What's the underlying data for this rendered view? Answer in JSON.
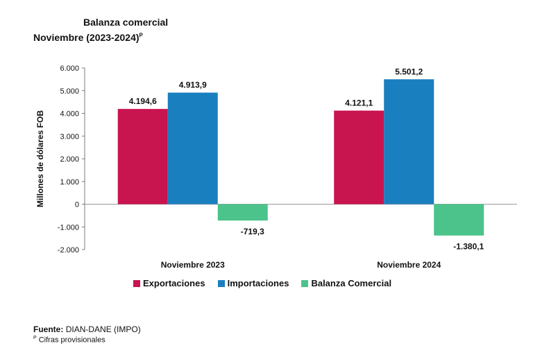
{
  "chart_data": {
    "type": "bar",
    "title": "Balanza comercial",
    "subtitle": "Noviembre (2023-2024)",
    "subtitle_superscript": "P",
    "xlabel": "",
    "ylabel": "Millones de dólares FOB",
    "ylim": [
      -2000,
      6000
    ],
    "yticks": [
      6000,
      5000,
      4000,
      3000,
      2000,
      1000,
      0,
      -1000,
      -2000
    ],
    "ytick_labels": [
      "6.000",
      "5.000",
      "4.000",
      "3.000",
      "2.000",
      "1.000",
      "0",
      "-1.000",
      "-2.000"
    ],
    "categories": [
      "Noviembre 2023",
      "Noviembre 2024"
    ],
    "series": [
      {
        "name": "Exportaciones",
        "color": "#c8144f",
        "values": [
          4194.6,
          4121.1
        ],
        "labels": [
          "4.194,6",
          "4.121,1"
        ]
      },
      {
        "name": "Importaciones",
        "color": "#1a7fbf",
        "values": [
          4913.9,
          5501.2
        ],
        "labels": [
          "4.913,9",
          "5.501,2"
        ]
      },
      {
        "name": "Balanza Comercial",
        "color": "#4bc38a",
        "values": [
          -719.3,
          -1380.1
        ],
        "labels": [
          "-719,3",
          "-1.380,1"
        ]
      }
    ],
    "legend_position": "bottom",
    "grid": false
  },
  "footer": {
    "source_label": "Fuente:",
    "source_value": "DIAN-DANE (IMPO)",
    "note_marker": "P",
    "note_text": "Cifras provisionales"
  }
}
